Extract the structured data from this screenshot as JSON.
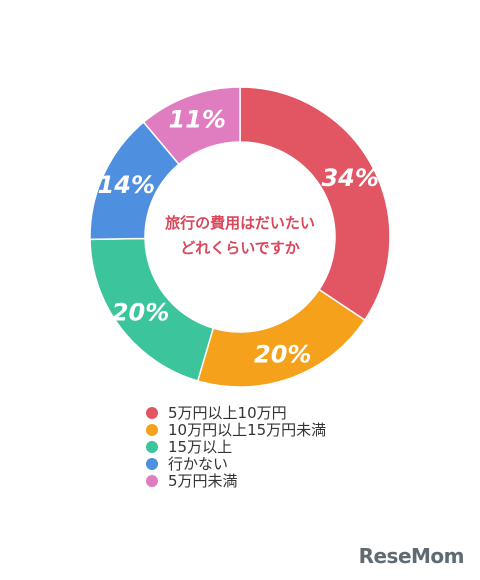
{
  "chart_data": {
    "type": "pie",
    "variant": "donut",
    "center_text": [
      "旅行の費用はだいたい",
      "どれくらいですか"
    ],
    "categories": [
      "5万円以上10万円",
      "10万円以上15万円未満",
      "15万以上",
      "行かない",
      "5万円未満"
    ],
    "values": [
      34,
      20,
      20,
      14,
      11
    ],
    "value_labels": [
      "34%",
      "20%",
      "20%",
      "14%",
      "11%"
    ],
    "colors": [
      "#e25563",
      "#f5a11b",
      "#3cc49d",
      "#4f8fe0",
      "#e07dc1"
    ],
    "legend_position": "bottom"
  },
  "watermark": "ReseMom"
}
